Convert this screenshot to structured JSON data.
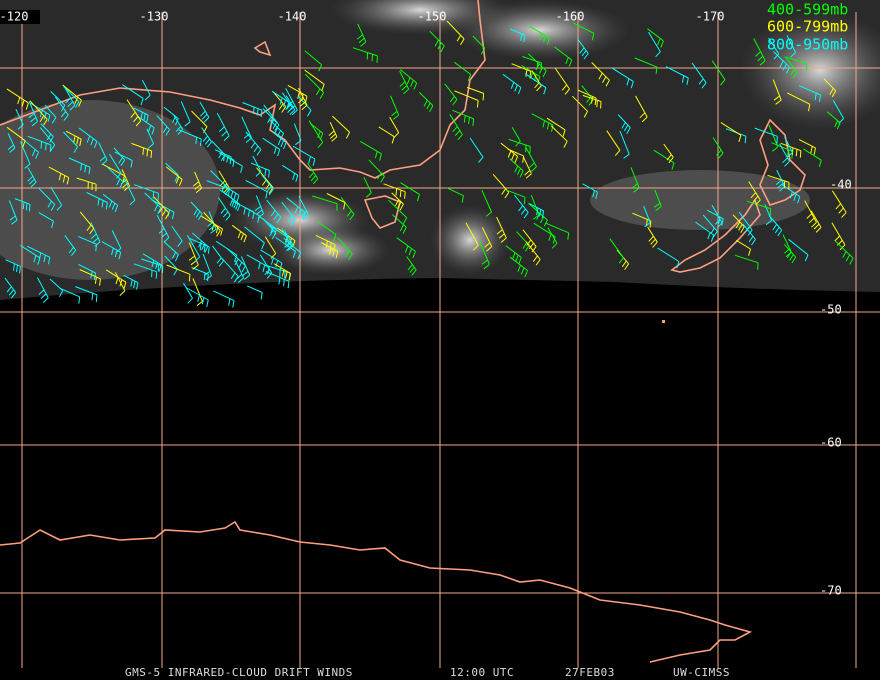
{
  "map": {
    "longitude_labels": [
      "-120",
      "-130",
      "-140",
      "-150",
      "-160",
      "-170"
    ],
    "latitude_labels": [
      "-40",
      "-50",
      "-60",
      "-70"
    ],
    "legend": [
      "400-599mb",
      "600-799mb",
      "800-950mb"
    ],
    "footer": [
      "GMS-5 INFRARED-CLOUD DRIFT WINDS",
      "12:00 UTC",
      "27FEB03",
      "UW-CIMSS"
    ]
  }
}
